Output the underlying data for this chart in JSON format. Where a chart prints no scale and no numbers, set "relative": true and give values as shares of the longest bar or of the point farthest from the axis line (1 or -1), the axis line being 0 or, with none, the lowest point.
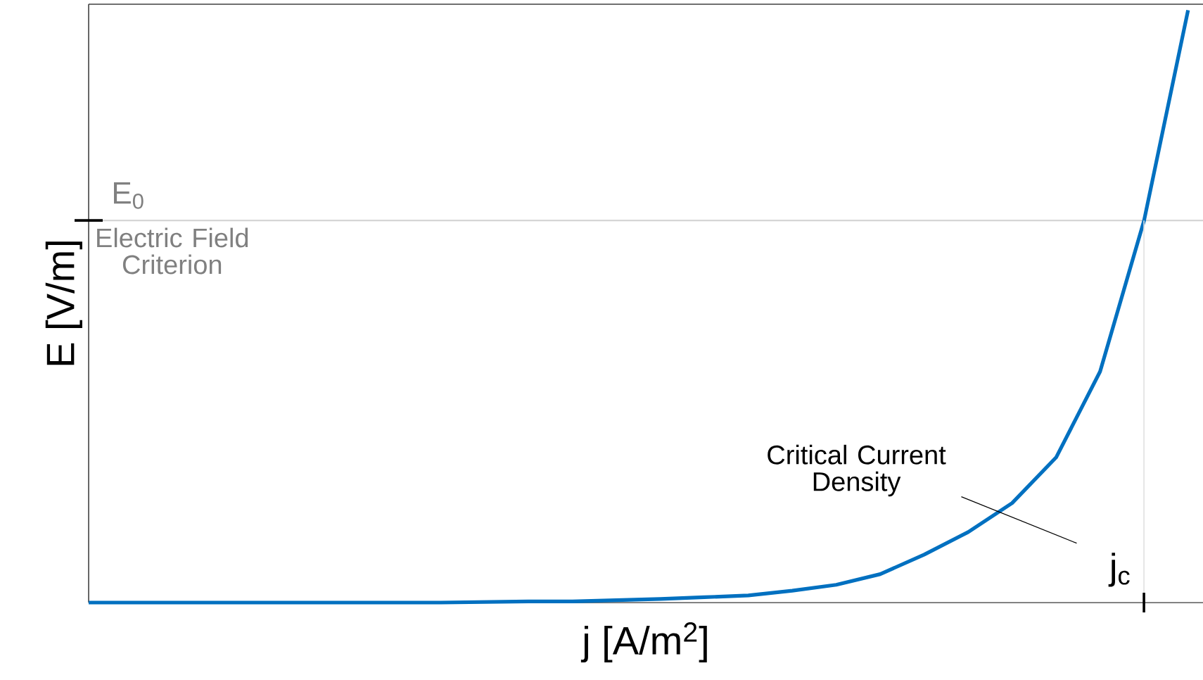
{
  "chart_data": {
    "type": "line",
    "relative": true,
    "xlabel": "j [A/m$^{2}$]",
    "ylabel": "E [V/m]",
    "categories": [
      null,
      null,
      null,
      null,
      null,
      null,
      null,
      null,
      null,
      null,
      null,
      null,
      null,
      null,
      null,
      null,
      null,
      null,
      null,
      null,
      null,
      null,
      null,
      null,
      null,
      null
    ],
    "series": [
      {
        "color": "#0070c0",
        "values": [
          0,
          0,
          0,
          0,
          0,
          0,
          0,
          0,
          0,
          0.001,
          0.002,
          0.002,
          0.004,
          0.006,
          0.009,
          0.012,
          0.02,
          0.03,
          0.048,
          0.081,
          0.119,
          0.168,
          0.245,
          0.39,
          0.645,
          1
        ]
      }
    ],
    "ref_lines": [
      {
        "axis": "y",
        "value": 0.645,
        "label": "E$_{0}$",
        "color": "#d0d0d0"
      }
    ],
    "annotations": [
      "Electric Field Criterion",
      "Critical Current Density",
      "j$_{c}$"
    ],
    "marker": "none",
    "line_style": "solid"
  }
}
